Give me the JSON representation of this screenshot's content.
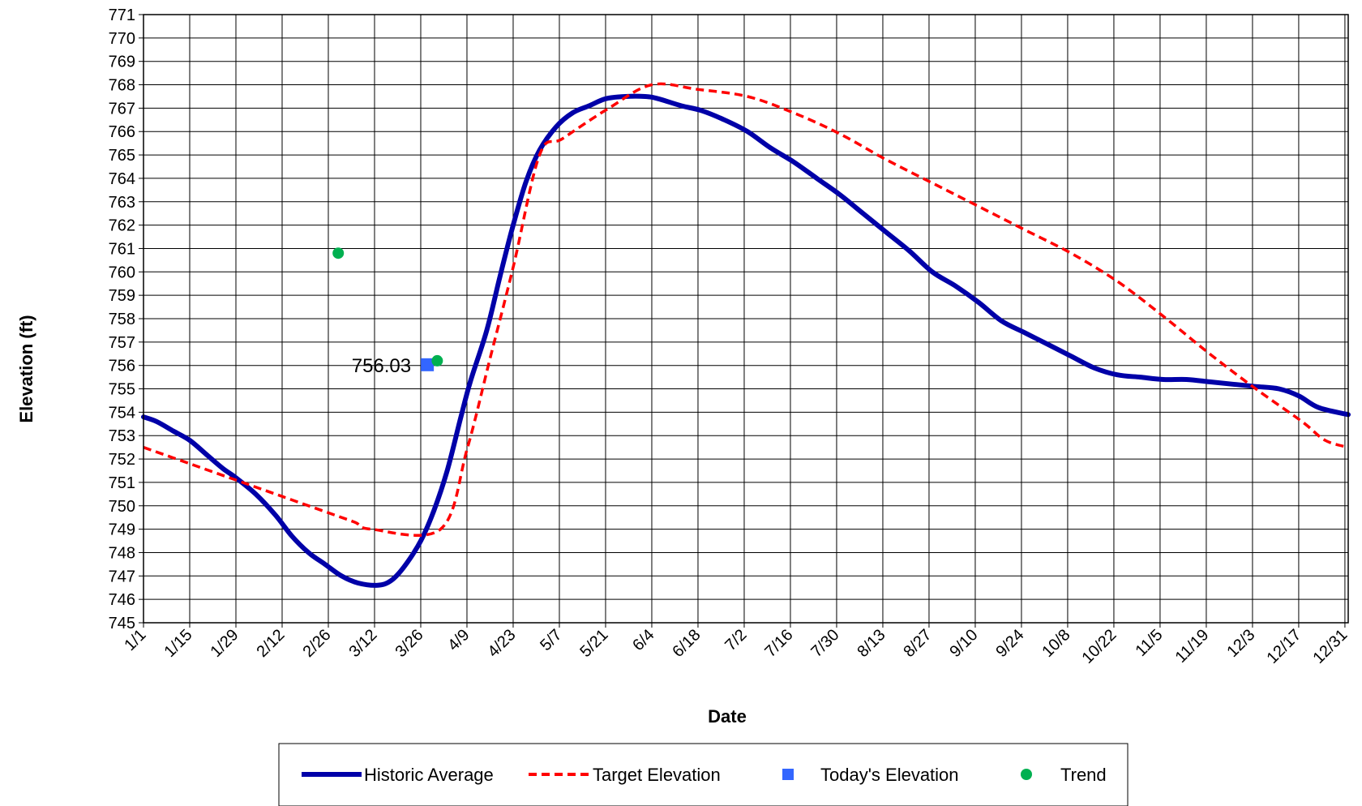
{
  "chart_data": {
    "type": "line",
    "title": "",
    "xlabel": "Date",
    "ylabel": "Elevation (ft)",
    "ylim": [
      745,
      771
    ],
    "x_tick_labels": [
      "1/1",
      "1/15",
      "1/29",
      "2/12",
      "2/26",
      "3/12",
      "3/26",
      "4/9",
      "4/23",
      "5/7",
      "5/21",
      "6/4",
      "6/18",
      "7/2",
      "7/16",
      "7/30",
      "8/13",
      "8/27",
      "9/10",
      "9/24",
      "10/8",
      "10/22",
      "11/5",
      "11/19",
      "12/3",
      "12/17",
      "12/31"
    ],
    "x_tick_values": [
      "2000-01-01",
      "2000-01-15",
      "2000-01-29",
      "2000-02-12",
      "2000-02-26",
      "2000-03-11",
      "2000-03-25",
      "2000-04-08",
      "2000-04-22",
      "2000-05-06",
      "2000-05-20",
      "2000-06-03",
      "2000-06-17",
      "2000-07-01",
      "2000-07-15",
      "2000-07-29",
      "2000-08-12",
      "2000-08-26",
      "2000-09-09",
      "2000-09-23",
      "2000-10-07",
      "2000-10-21",
      "2000-11-04",
      "2000-11-18",
      "2000-12-02",
      "2000-12-16",
      "2000-12-30"
    ],
    "x_range": [
      "2000-01-01",
      "2000-12-31"
    ],
    "y_ticks": [
      745,
      746,
      747,
      748,
      749,
      750,
      751,
      752,
      753,
      754,
      755,
      756,
      757,
      758,
      759,
      760,
      761,
      762,
      763,
      764,
      765,
      766,
      767,
      768,
      769,
      770,
      771
    ],
    "grid": true,
    "legend_position": "bottom",
    "series": [
      {
        "name": "Historic Average",
        "style": "solid",
        "color": "#0000A8",
        "points": [
          [
            "2000-01-01",
            753.8
          ],
          [
            "2000-01-05",
            753.6
          ],
          [
            "2000-01-10",
            753.2
          ],
          [
            "2000-01-15",
            752.8
          ],
          [
            "2000-01-20",
            752.2
          ],
          [
            "2000-01-25",
            751.6
          ],
          [
            "2000-01-29",
            751.2
          ],
          [
            "2000-02-04",
            750.5
          ],
          [
            "2000-02-10",
            749.6
          ],
          [
            "2000-02-15",
            748.7
          ],
          [
            "2000-02-20",
            748.0
          ],
          [
            "2000-02-25",
            747.5
          ],
          [
            "2000-03-01",
            747.0
          ],
          [
            "2000-03-06",
            746.7
          ],
          [
            "2000-03-12",
            746.6
          ],
          [
            "2000-03-16",
            746.8
          ],
          [
            "2000-03-20",
            747.4
          ],
          [
            "2000-03-25",
            748.5
          ],
          [
            "2000-03-29",
            749.8
          ],
          [
            "2000-04-02",
            751.5
          ],
          [
            "2000-04-06",
            753.7
          ],
          [
            "2000-04-09",
            755.3
          ],
          [
            "2000-04-14",
            757.5
          ],
          [
            "2000-04-18",
            759.8
          ],
          [
            "2000-04-22",
            762.0
          ],
          [
            "2000-04-26",
            763.9
          ],
          [
            "2000-04-30",
            765.2
          ],
          [
            "2000-05-05",
            766.2
          ],
          [
            "2000-05-10",
            766.8
          ],
          [
            "2000-05-15",
            767.1
          ],
          [
            "2000-05-20",
            767.4
          ],
          [
            "2000-05-26",
            767.5
          ],
          [
            "2000-06-01",
            767.5
          ],
          [
            "2000-06-05",
            767.4
          ],
          [
            "2000-06-12",
            767.1
          ],
          [
            "2000-06-18",
            766.9
          ],
          [
            "2000-06-25",
            766.5
          ],
          [
            "2000-07-02",
            766.0
          ],
          [
            "2000-07-09",
            765.3
          ],
          [
            "2000-07-16",
            764.7
          ],
          [
            "2000-07-23",
            764.0
          ],
          [
            "2000-07-30",
            763.3
          ],
          [
            "2000-08-06",
            762.5
          ],
          [
            "2000-08-13",
            761.7
          ],
          [
            "2000-08-20",
            760.9
          ],
          [
            "2000-08-27",
            760.0
          ],
          [
            "2000-09-03",
            759.4
          ],
          [
            "2000-09-10",
            758.7
          ],
          [
            "2000-09-17",
            757.9
          ],
          [
            "2000-09-24",
            757.4
          ],
          [
            "2000-10-01",
            756.9
          ],
          [
            "2000-10-08",
            756.4
          ],
          [
            "2000-10-15",
            755.9
          ],
          [
            "2000-10-22",
            755.6
          ],
          [
            "2000-10-29",
            755.5
          ],
          [
            "2000-11-05",
            755.4
          ],
          [
            "2000-11-12",
            755.4
          ],
          [
            "2000-11-19",
            755.3
          ],
          [
            "2000-11-26",
            755.2
          ],
          [
            "2000-12-03",
            755.1
          ],
          [
            "2000-12-10",
            755.0
          ],
          [
            "2000-12-16",
            754.7
          ],
          [
            "2000-12-22",
            754.2
          ],
          [
            "2000-12-31",
            753.9
          ]
        ]
      },
      {
        "name": "Target Elevation",
        "style": "dashed",
        "color": "#FF0000",
        "points": [
          [
            "2000-01-01",
            752.5
          ],
          [
            "2000-01-15",
            751.8
          ],
          [
            "2000-01-29",
            751.1
          ],
          [
            "2000-02-12",
            750.4
          ],
          [
            "2000-02-26",
            749.7
          ],
          [
            "2000-03-05",
            749.3
          ],
          [
            "2000-03-10",
            749.0
          ],
          [
            "2000-03-31",
            749.0
          ],
          [
            "2000-04-08",
            752.4
          ],
          [
            "2000-04-15",
            756.3
          ],
          [
            "2000-04-22",
            760.2
          ],
          [
            "2000-04-30",
            765.0
          ],
          [
            "2000-05-07",
            765.7
          ],
          [
            "2000-05-21",
            767.0
          ],
          [
            "2000-06-03",
            768.0
          ],
          [
            "2000-06-17",
            767.8
          ],
          [
            "2000-07-02",
            767.5
          ],
          [
            "2000-07-16",
            766.8
          ],
          [
            "2000-07-30",
            765.9
          ],
          [
            "2000-08-13",
            764.8
          ],
          [
            "2000-08-27",
            763.8
          ],
          [
            "2000-09-10",
            762.8
          ],
          [
            "2000-09-24",
            761.8
          ],
          [
            "2000-10-08",
            760.8
          ],
          [
            "2000-10-22",
            759.6
          ],
          [
            "2000-11-05",
            758.1
          ],
          [
            "2000-11-19",
            756.5
          ],
          [
            "2000-12-03",
            755.0
          ],
          [
            "2000-12-17",
            753.6
          ],
          [
            "2000-12-24",
            752.8
          ],
          [
            "2000-12-31",
            752.5
          ]
        ]
      },
      {
        "name": "Today's Elevation",
        "style": "marker-square",
        "color": "#3366FF",
        "points": [
          [
            "2000-03-27",
            756.03
          ]
        ],
        "point_label": "756.03"
      },
      {
        "name": "Trend",
        "style": "marker-circle",
        "color": "#00B050",
        "points": [
          [
            "2000-02-29",
            760.8
          ],
          [
            "2000-03-30",
            756.2
          ]
        ]
      }
    ]
  }
}
